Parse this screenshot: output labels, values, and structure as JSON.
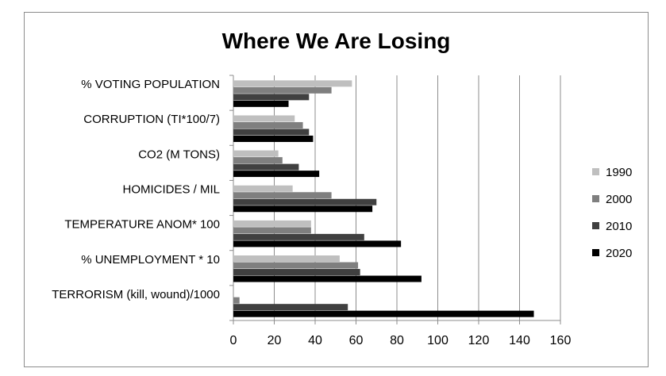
{
  "chart_data": {
    "type": "bar",
    "orientation": "horizontal",
    "title": "Where We Are Losing",
    "xlabel": "",
    "ylabel": "",
    "xlim": [
      0,
      160
    ],
    "xticks": [
      0,
      20,
      40,
      60,
      80,
      100,
      120,
      140,
      160
    ],
    "grid": true,
    "legend_position": "right",
    "categories": [
      "% VOTING POPULATION",
      "CORRUPTION (TI*100/7)",
      "CO2 (M TONS)",
      "HOMICIDES / MIL",
      "TEMPERATURE ANOM* 100",
      "% UNEMPLOYMENT * 10",
      "TERRORISM (kill, wound)/1000"
    ],
    "series": [
      {
        "name": "1990",
        "color": "#bfbfbf",
        "values": [
          58,
          30,
          22,
          29,
          38,
          52,
          0
        ]
      },
      {
        "name": "2000",
        "color": "#7f7f7f",
        "values": [
          48,
          34,
          24,
          48,
          38,
          61,
          3
        ]
      },
      {
        "name": "2010",
        "color": "#404040",
        "values": [
          37,
          37,
          32,
          70,
          64,
          62,
          56
        ]
      },
      {
        "name": "2020",
        "color": "#000000",
        "values": [
          27,
          39,
          42,
          68,
          82,
          92,
          147
        ]
      }
    ]
  }
}
